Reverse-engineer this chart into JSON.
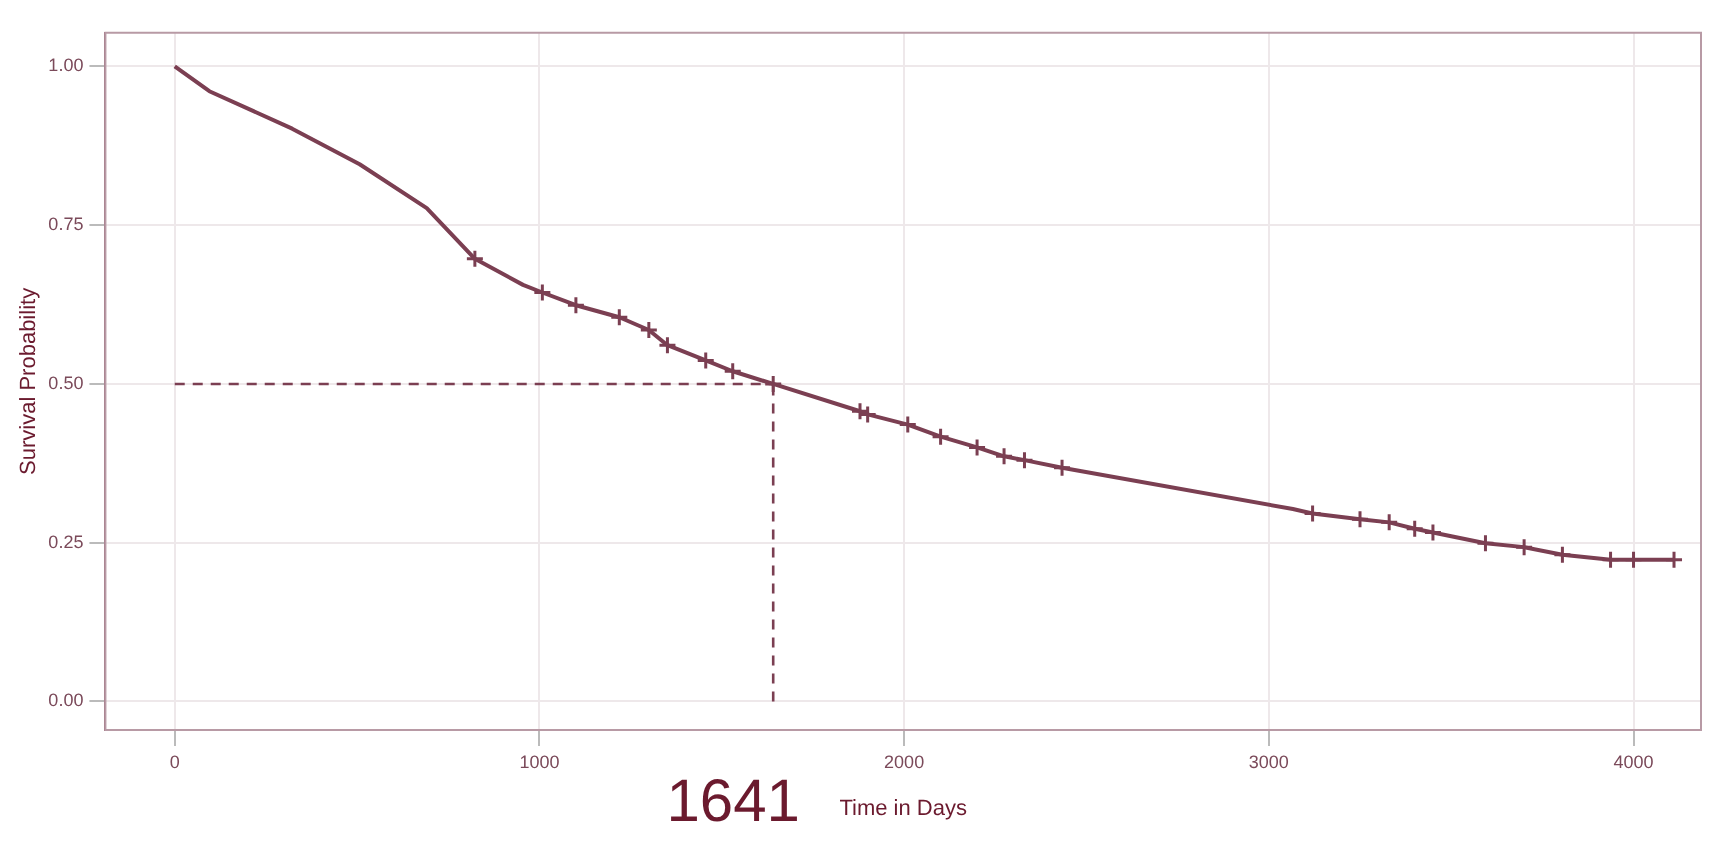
{
  "chart_data": {
    "type": "line",
    "xlabel": "Time in Days",
    "ylabel": "Survival Probability",
    "xlim": [
      -190,
      4185
    ],
    "ylim": [
      -0.045,
      1.053
    ],
    "xticks": [
      0,
      1000,
      2000,
      3000,
      4000
    ],
    "yticks": [
      {
        "value": 0,
        "label": "0.00"
      },
      {
        "value": 0.25,
        "label": "0.25"
      },
      {
        "value": 0.5,
        "label": "0.50"
      },
      {
        "value": 0.75,
        "label": "0.75"
      },
      {
        "value": 1,
        "label": "1.00"
      }
    ],
    "grid": true,
    "line_style": "solid",
    "series": [
      {
        "marker": "none",
        "color": "#7b3f52",
        "x": [
          0,
          95,
          322,
          507,
          691,
          823,
          955,
          1008,
          1100,
          1219,
          1300,
          1351,
          1456,
          1530,
          1641,
          1879,
          1900,
          2010,
          2100,
          2200,
          2274,
          2330,
          2433,
          3066,
          3120,
          3250,
          3330,
          3400,
          3450,
          3594,
          3700,
          3805,
          3937,
          4000,
          4111
        ],
        "values": [
          1.0,
          0.961,
          0.902,
          0.846,
          0.777,
          0.697,
          0.656,
          0.644,
          0.624,
          0.605,
          0.585,
          0.561,
          0.537,
          0.52,
          0.5,
          0.457,
          0.452,
          0.436,
          0.417,
          0.4,
          0.386,
          0.38,
          0.368,
          0.303,
          0.296,
          0.287,
          0.282,
          0.272,
          0.266,
          0.249,
          0.243,
          0.231,
          0.223,
          0.223,
          0.223
        ]
      },
      {
        "type": "scatter",
        "marker": "cross",
        "color": "#7b3f52",
        "x": [
          823,
          1008,
          1100,
          1219,
          1300,
          1351,
          1456,
          1530,
          1641,
          1879,
          1900,
          2010,
          2100,
          2200,
          2274,
          2330,
          2433,
          3120,
          3250,
          3330,
          3400,
          3450,
          3594,
          3700,
          3805,
          3937,
          4000,
          4111
        ],
        "values": [
          0.697,
          0.644,
          0.624,
          0.605,
          0.585,
          0.561,
          0.537,
          0.52,
          0.5,
          0.457,
          0.452,
          0.436,
          0.417,
          0.4,
          0.386,
          0.38,
          0.368,
          0.296,
          0.287,
          0.282,
          0.272,
          0.266,
          0.249,
          0.243,
          0.231,
          0.223,
          0.223,
          0.223
        ]
      }
    ],
    "ref_lines": [
      {
        "axis": "y",
        "value": 0.5,
        "line_style": "dashed",
        "color": "#7b3f52"
      },
      {
        "axis": "x",
        "value": 1641,
        "label": "1641",
        "line_style": "dashed",
        "color": "#7b3f52"
      }
    ]
  }
}
